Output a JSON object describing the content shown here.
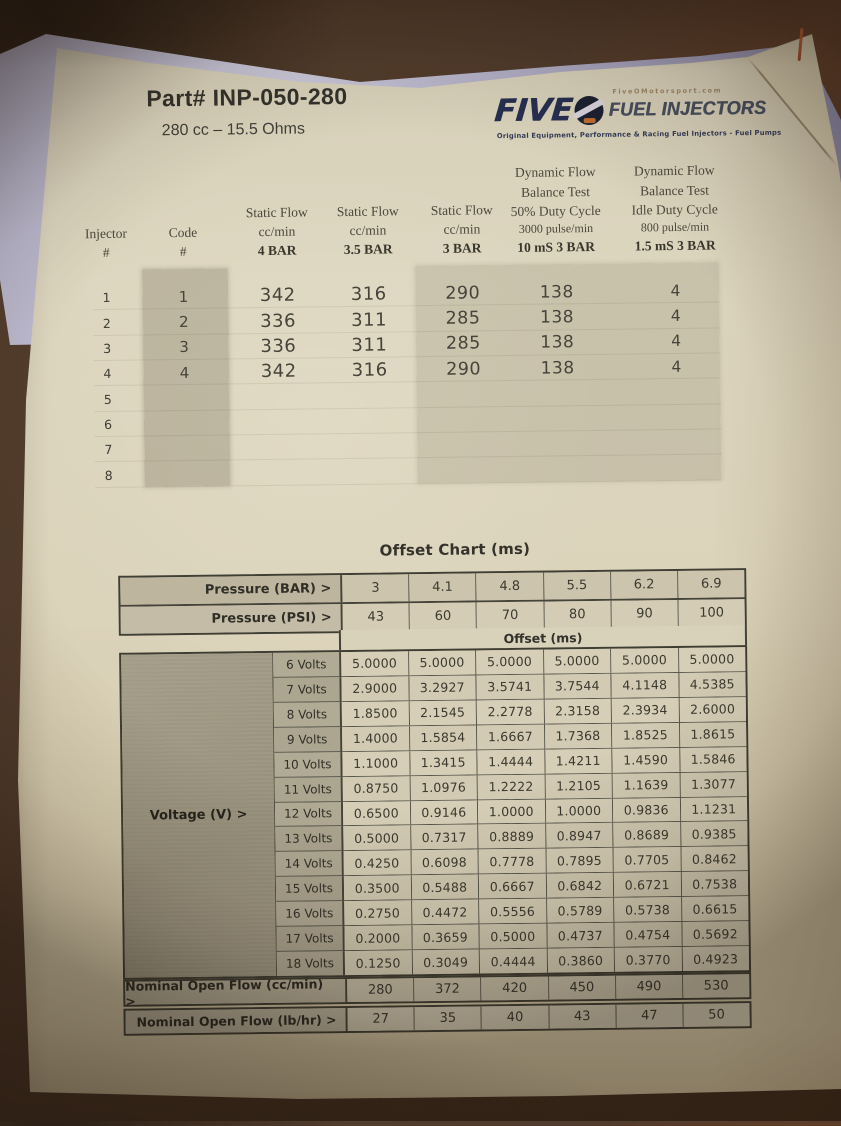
{
  "header": {
    "part_number": "Part# INP-050-280",
    "spec": "280 cc – 15.5 Ohms"
  },
  "logo": {
    "brand_text": "FIVE",
    "website": "FiveOMotorsport.com",
    "product_text": "FUEL INJECTORS",
    "tagline": "Original Equipment, Performance & Racing Fuel Injectors - Fuel Pumps"
  },
  "flow_table": {
    "columns": [
      {
        "lines": [
          "Injector",
          "#"
        ]
      },
      {
        "lines": [
          "Code",
          "#"
        ]
      },
      {
        "lines": [
          "Static Flow",
          "cc/min",
          "4 BAR"
        ]
      },
      {
        "lines": [
          "Static Flow",
          "cc/min",
          "3.5 BAR"
        ]
      },
      {
        "lines": [
          "Static Flow",
          "cc/min",
          "3 BAR"
        ]
      },
      {
        "lines": [
          "Dynamic Flow",
          "Balance Test",
          "50% Duty Cycle",
          "3000 pulse/min",
          "10 mS  3 BAR"
        ]
      },
      {
        "lines": [
          "Dynamic Flow",
          "Balance Test",
          "Idle Duty Cycle",
          "800 pulse/min",
          "1.5 mS 3 BAR"
        ]
      }
    ],
    "rows": [
      [
        "1",
        "1",
        "342",
        "316",
        "290",
        "138",
        "4"
      ],
      [
        "2",
        "2",
        "336",
        "311",
        "285",
        "138",
        "4"
      ],
      [
        "3",
        "3",
        "336",
        "311",
        "285",
        "138",
        "4"
      ],
      [
        "4",
        "4",
        "342",
        "316",
        "290",
        "138",
        "4"
      ],
      [
        "5",
        "",
        "",
        "",
        "",
        "",
        ""
      ],
      [
        "6",
        "",
        "",
        "",
        "",
        "",
        ""
      ],
      [
        "7",
        "",
        "",
        "",
        "",
        "",
        ""
      ],
      [
        "8",
        "",
        "",
        "",
        "",
        "",
        ""
      ]
    ]
  },
  "offset_chart": {
    "title": "Offset Chart (ms)",
    "pressure_bar_label": "Pressure (BAR) >",
    "pressure_bar_values": [
      "3",
      "4.1",
      "4.8",
      "5.5",
      "6.2",
      "6.9"
    ],
    "pressure_psi_label": "Pressure (PSI) >",
    "pressure_psi_values": [
      "43",
      "60",
      "70",
      "80",
      "90",
      "100"
    ],
    "offset_header": "Offset (ms)",
    "voltage_axis_label": "Voltage (V) >",
    "voltage_rows": [
      {
        "voltage": "6 Volts",
        "offsets": [
          "5.0000",
          "5.0000",
          "5.0000",
          "5.0000",
          "5.0000",
          "5.0000"
        ]
      },
      {
        "voltage": "7 Volts",
        "offsets": [
          "2.9000",
          "3.2927",
          "3.5741",
          "3.7544",
          "4.1148",
          "4.5385"
        ]
      },
      {
        "voltage": "8 Volts",
        "offsets": [
          "1.8500",
          "2.1545",
          "2.2778",
          "2.3158",
          "2.3934",
          "2.6000"
        ]
      },
      {
        "voltage": "9 Volts",
        "offsets": [
          "1.4000",
          "1.5854",
          "1.6667",
          "1.7368",
          "1.8525",
          "1.8615"
        ]
      },
      {
        "voltage": "10 Volts",
        "offsets": [
          "1.1000",
          "1.3415",
          "1.4444",
          "1.4211",
          "1.4590",
          "1.5846"
        ]
      },
      {
        "voltage": "11 Volts",
        "offsets": [
          "0.8750",
          "1.0976",
          "1.2222",
          "1.2105",
          "1.1639",
          "1.3077"
        ]
      },
      {
        "voltage": "12 Volts",
        "offsets": [
          "0.6500",
          "0.9146",
          "1.0000",
          "1.0000",
          "0.9836",
          "1.1231"
        ]
      },
      {
        "voltage": "13 Volts",
        "offsets": [
          "0.5000",
          "0.7317",
          "0.8889",
          "0.8947",
          "0.8689",
          "0.9385"
        ]
      },
      {
        "voltage": "14 Volts",
        "offsets": [
          "0.4250",
          "0.6098",
          "0.7778",
          "0.7895",
          "0.7705",
          "0.8462"
        ]
      },
      {
        "voltage": "15 Volts",
        "offsets": [
          "0.3500",
          "0.5488",
          "0.6667",
          "0.6842",
          "0.6721",
          "0.7538"
        ]
      },
      {
        "voltage": "16 Volts",
        "offsets": [
          "0.2750",
          "0.4472",
          "0.5556",
          "0.5789",
          "0.5738",
          "0.6615"
        ]
      },
      {
        "voltage": "17 Volts",
        "offsets": [
          "0.2000",
          "0.3659",
          "0.5000",
          "0.4737",
          "0.4754",
          "0.5692"
        ]
      },
      {
        "voltage": "18 Volts",
        "offsets": [
          "0.1250",
          "0.3049",
          "0.4444",
          "0.3860",
          "0.3770",
          "0.4923"
        ]
      }
    ],
    "nominal_cc_label": "Nominal Open Flow (cc/min) >",
    "nominal_cc_values": [
      "280",
      "372",
      "420",
      "450",
      "490",
      "530"
    ],
    "nominal_lb_label": "Nominal Open Flow (lb/hr) >",
    "nominal_lb_values": [
      "27",
      "35",
      "40",
      "43",
      "47",
      "50"
    ]
  },
  "colors": {
    "background_brown": "#4a3424",
    "paper_cream": "#dcd4bb",
    "backing_sheet": "#c3c0d4",
    "table_border": "#43423a",
    "shaded_cell": "#aaa38e",
    "ink": "#3a382f",
    "logo_navy": "#262e50",
    "red_pen_mark": "#a84b28"
  }
}
